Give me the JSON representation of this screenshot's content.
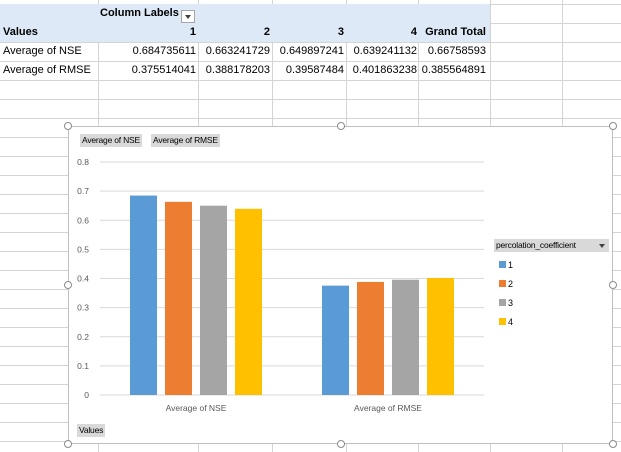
{
  "pivot": {
    "column_labels": "Column Labels",
    "values_header": "Values",
    "columns": [
      "1",
      "2",
      "3",
      "4",
      "Grand Total"
    ],
    "rows": [
      {
        "label": "Average of NSE",
        "values": [
          "0.684735611",
          "0.663241729",
          "0.649897241",
          "0.639241132",
          "0.66758593"
        ]
      },
      {
        "label": "Average of RMSE",
        "values": [
          "0.375514041",
          "0.388178203",
          "0.39587484",
          "0.401863238",
          "0.385564891"
        ]
      }
    ]
  },
  "chart": {
    "field_buttons": [
      "Average of NSE",
      "Average of RMSE"
    ],
    "axis_field_button": "Values",
    "legend_title": "percolation_coefficient",
    "legend_items": [
      "1",
      "2",
      "3",
      "4"
    ],
    "colors": [
      "#5b9bd5",
      "#ed7d31",
      "#a5a5a5",
      "#ffc000"
    ]
  },
  "chart_data": {
    "type": "bar",
    "categories": [
      "Average of NSE",
      "Average of RMSE"
    ],
    "series": [
      {
        "name": "1",
        "values": [
          0.684735611,
          0.375514041
        ]
      },
      {
        "name": "2",
        "values": [
          0.663241729,
          0.388178203
        ]
      },
      {
        "name": "3",
        "values": [
          0.649897241,
          0.39587484
        ]
      },
      {
        "name": "4",
        "values": [
          0.639241132,
          0.401863238
        ]
      }
    ],
    "ylim": [
      0,
      0.8
    ],
    "yticks": [
      "0",
      "0.1",
      "0.2",
      "0.3",
      "0.4",
      "0.5",
      "0.6",
      "0.7",
      "0.8"
    ],
    "grid": true,
    "legend": "right"
  }
}
